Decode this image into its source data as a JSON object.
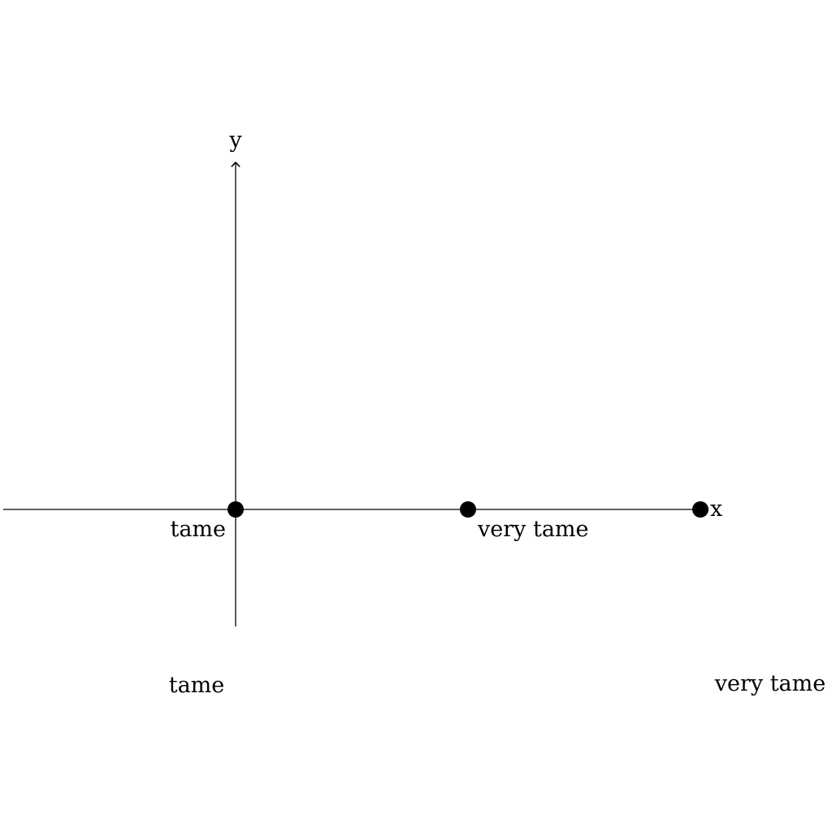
{
  "axes": {
    "x_label": "x",
    "y_label": "y"
  },
  "points": [
    {
      "name": "point-origin",
      "x": 0,
      "y": 0,
      "label": "tame"
    },
    {
      "name": "point-middle",
      "x": 1,
      "y": 0,
      "label": "very tame"
    },
    {
      "name": "point-end",
      "x": 2,
      "y": 0,
      "label": ""
    }
  ],
  "bottom_labels": {
    "left": "tame",
    "right": "very tame"
  },
  "colors": {
    "stroke": "#000000",
    "point_fill": "#000000",
    "background": "#ffffff"
  }
}
